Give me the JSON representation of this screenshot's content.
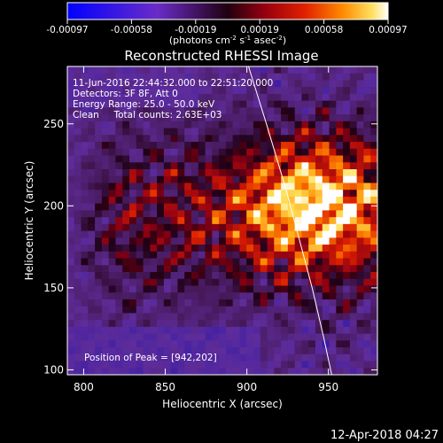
{
  "colorbar": {
    "ticks": [
      "-0.00097",
      "-0.00058",
      "-0.00019",
      "0.00019",
      "0.00058",
      "0.00097"
    ],
    "units_main": "(photons cm",
    "units_exp1": "-2",
    "units_mid1": " s",
    "units_exp2": "-1",
    "units_mid2": " asec",
    "units_exp3": "-2",
    "units_end": ")",
    "range": [
      -0.00097,
      0.00097
    ]
  },
  "footer": {
    "timestamp": "12-Apr-2018 04:27"
  },
  "chart_data": {
    "type": "heatmap",
    "title": "Reconstructed RHESSI Image",
    "xlabel": "Heliocentric X (arcsec)",
    "ylabel": "Heliocentric Y (arcsec)",
    "xlim": [
      790,
      980
    ],
    "ylim": [
      97,
      285
    ],
    "xticks": [
      800,
      850,
      900,
      950
    ],
    "yticks": [
      100,
      150,
      200,
      250
    ],
    "annotations": [
      "11-Jun-2016 22:44:32.000 to 22:51:20.000",
      "Detectors: 3F 8F, Att 0",
      "Energy Range: 25.0 - 50.0 keV",
      "Clean     Total counts: 2.63E+03"
    ],
    "peak_label": "Position of Peak = [942,202]",
    "peak": [
      942,
      202
    ],
    "limb_curve": [
      [
        901,
        285
      ],
      [
        912,
        250
      ],
      [
        924,
        210
      ],
      [
        932,
        180
      ],
      [
        940,
        150
      ],
      [
        947,
        120
      ],
      [
        952,
        97
      ]
    ],
    "grid": false
  }
}
